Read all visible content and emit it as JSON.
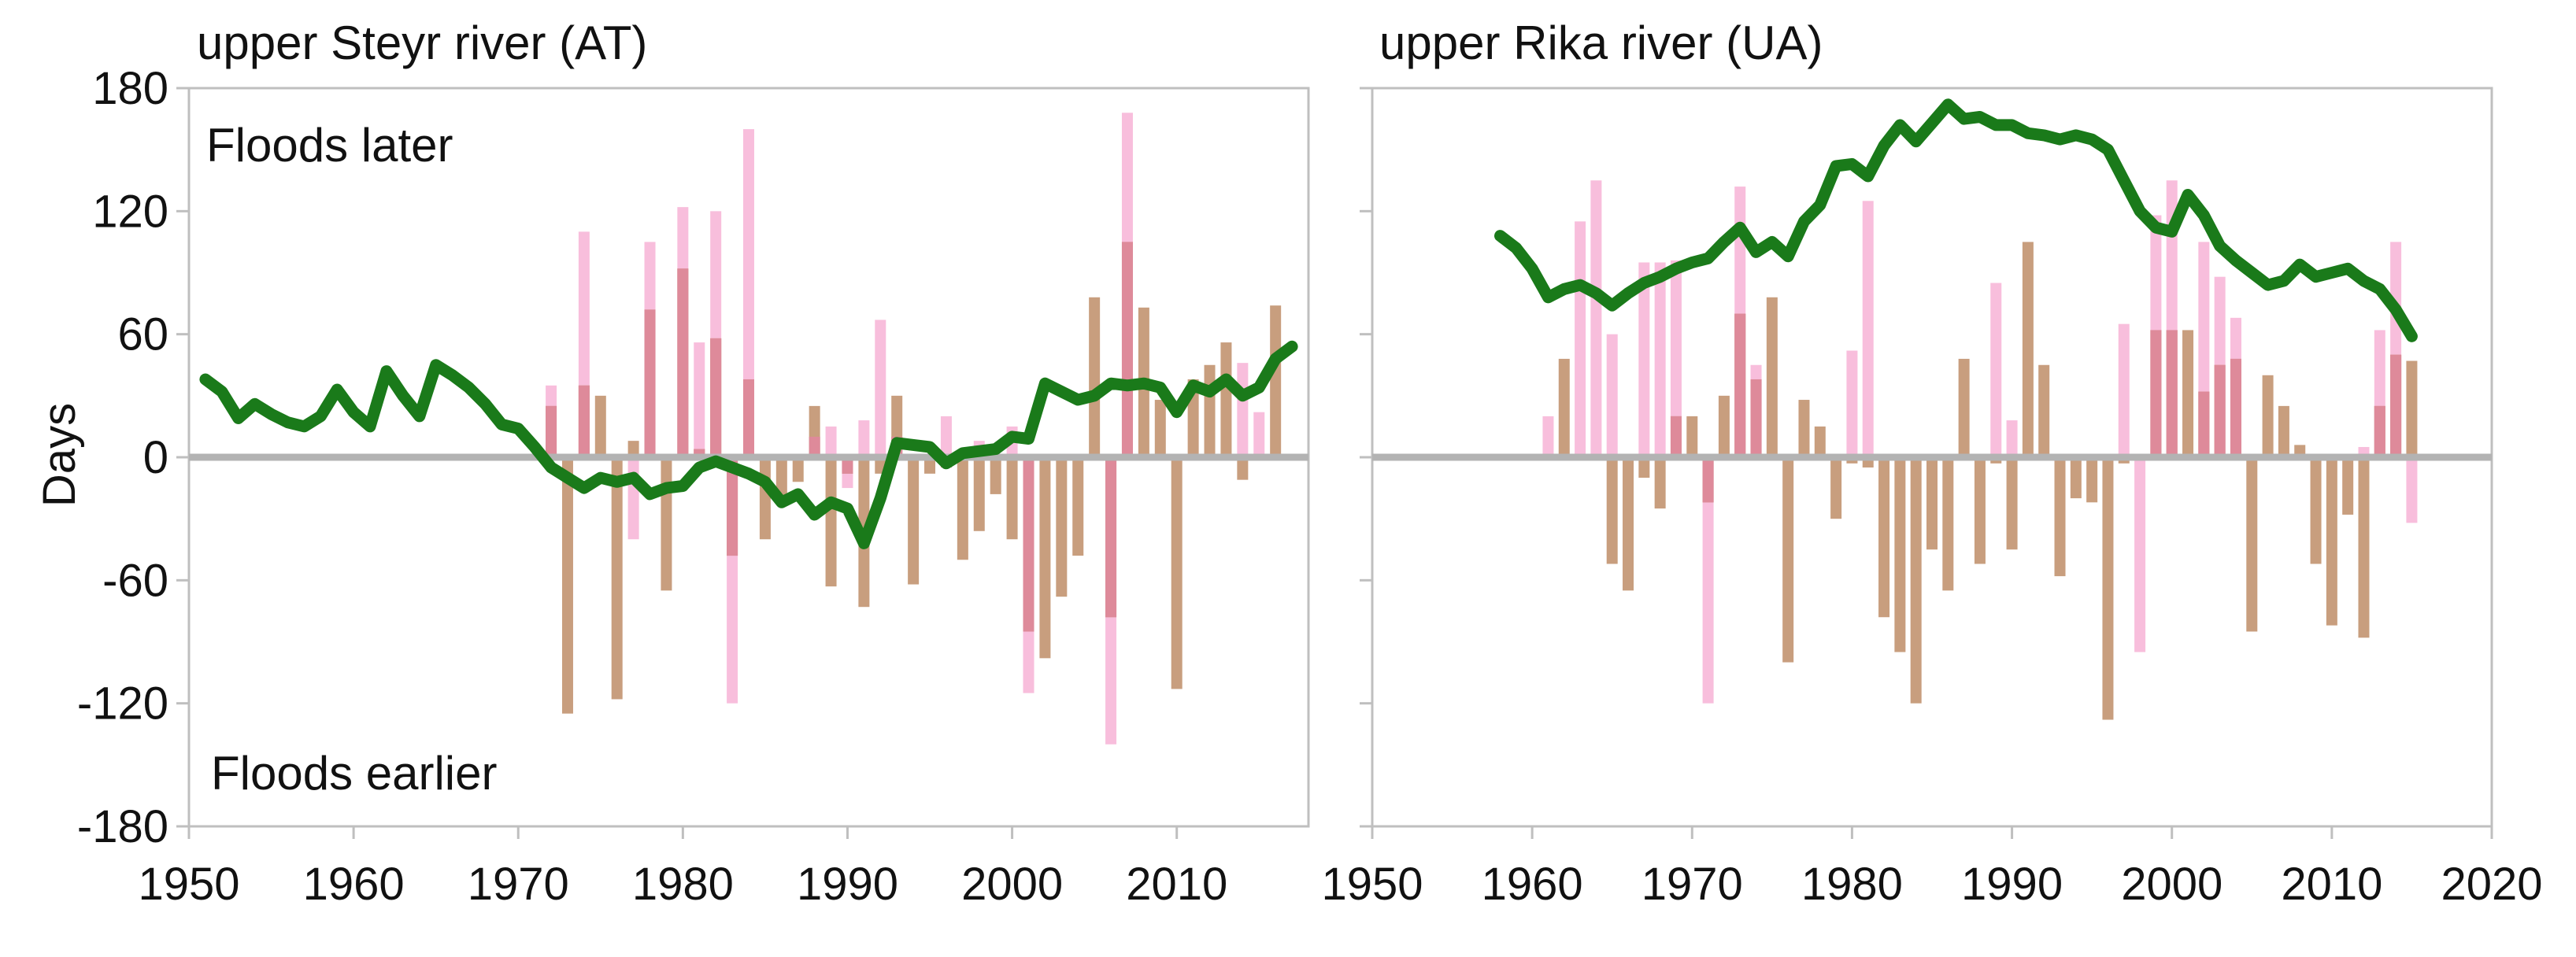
{
  "chart_data": [
    {
      "type": "bar",
      "title": "upper Steyr river (AT)",
      "ylabel": "Days",
      "xlabel": "",
      "xlim": [
        1950,
        2018
      ],
      "ylim": [
        -180,
        180
      ],
      "y_ticks": [
        180,
        120,
        60,
        0,
        -60,
        -120,
        -180
      ],
      "x_ticks": [
        1950,
        1960,
        1970,
        1980,
        1990,
        2000,
        2010
      ],
      "x_tick_labels": [
        "1950",
        "1960",
        "1970",
        "1980",
        "1990",
        "2000",
        "2010"
      ],
      "y_tick_labels": [
        "180",
        "120",
        "60",
        "0",
        "-60",
        "-120",
        "-180"
      ],
      "grid": false,
      "annotations": [
        "Floods later",
        "Floods earlier"
      ],
      "colors": {
        "pink": "#f7b3d6",
        "brown": "#c29470",
        "overlap": "#de8a9a",
        "trend": "#1a7a1a",
        "zero_line": "#b3b3b3",
        "frame": "#bfbfbf"
      },
      "series": [
        {
          "kind": "bar",
          "color": "pink",
          "x": [
            1972,
            1974,
            1977,
            1978,
            1980,
            1981,
            1982,
            1983,
            1984,
            1988,
            1989,
            1990,
            1991,
            1992,
            1993,
            1996,
            1998,
            2000,
            2001,
            2006,
            2007,
            2014,
            2015
          ],
          "values": [
            35,
            110,
            -40,
            105,
            122,
            56,
            120,
            -120,
            160,
            10,
            15,
            -15,
            18,
            67,
            10,
            20,
            8,
            15,
            -115,
            -140,
            168,
            46,
            22
          ]
        },
        {
          "kind": "bar",
          "color": "brown",
          "x": [
            1972,
            1973,
            1974,
            1975,
            1976,
            1977,
            1978,
            1979,
            1980,
            1981,
            1982,
            1983,
            1984,
            1985,
            1986,
            1987,
            1988,
            1989,
            1990,
            1991,
            1992,
            1993,
            1994,
            1995,
            1996,
            1997,
            1998,
            1999,
            2000,
            2001,
            2002,
            2003,
            2004,
            2005,
            2006,
            2007,
            2008,
            2009,
            2010,
            2011,
            2012,
            2013,
            2014,
            2016
          ],
          "values": [
            25,
            -125,
            35,
            30,
            -118,
            8,
            72,
            -65,
            92,
            4,
            58,
            -48,
            38,
            -40,
            -20,
            -12,
            25,
            -63,
            -8,
            -73,
            -8,
            30,
            -62,
            -8,
            -5,
            -50,
            -36,
            -18,
            -40,
            -85,
            -98,
            -68,
            -48,
            78,
            -78,
            105,
            73,
            28,
            -113,
            38,
            45,
            56,
            -11,
            74
          ]
        },
        {
          "kind": "line",
          "color": "trend",
          "name": "",
          "x": [
            1951,
            1952,
            1953,
            1954,
            1955,
            1956,
            1957,
            1958,
            1959,
            1960,
            1961,
            1962,
            1963,
            1964,
            1965,
            1966,
            1967,
            1968,
            1969,
            1970,
            1971,
            1972,
            1973,
            1974,
            1975,
            1976,
            1977,
            1978,
            1979,
            1980,
            1981,
            1982,
            1983,
            1984,
            1985,
            1986,
            1987,
            1988,
            1989,
            1990,
            1991,
            1992,
            1993,
            1994,
            1995,
            1996,
            1997,
            1998,
            1999,
            2000,
            2001,
            2002,
            2003,
            2004,
            2005,
            2006,
            2007,
            2008,
            2009,
            2010,
            2011,
            2012,
            2013,
            2014,
            2015,
            2016,
            2017
          ],
          "values": [
            38,
            32,
            19,
            26,
            21,
            17,
            15,
            20,
            33,
            22,
            15,
            42,
            30,
            20,
            45,
            40,
            34,
            26,
            16,
            14,
            5,
            -5,
            -10,
            -15,
            -10,
            -12,
            -10,
            -18,
            -15,
            -14,
            -5,
            -2,
            -5,
            -8,
            -12,
            -22,
            -18,
            -28,
            -22,
            -25,
            -42,
            -20,
            7,
            6,
            5,
            -3,
            2,
            3,
            4,
            10,
            9,
            36,
            32,
            28,
            30,
            36,
            35,
            36,
            34,
            22,
            35,
            32,
            38,
            30,
            34,
            48,
            54
          ]
        }
      ]
    },
    {
      "type": "bar",
      "title": "upper Rika river (UA)",
      "ylabel": "",
      "xlabel": "",
      "xlim": [
        1950,
        2020
      ],
      "ylim": [
        -180,
        180
      ],
      "y_ticks": [
        180,
        120,
        60,
        0,
        -60,
        -120,
        -180
      ],
      "x_ticks": [
        1950,
        1960,
        1970,
        1980,
        1990,
        2000,
        2010,
        2020
      ],
      "x_tick_labels": [
        "1950",
        "1960",
        "1970",
        "1980",
        "1990",
        "2000",
        "2010",
        "2020"
      ],
      "grid": false,
      "series": [
        {
          "kind": "bar",
          "color": "pink",
          "x": [
            1961,
            1963,
            1964,
            1965,
            1967,
            1968,
            1969,
            1971,
            1973,
            1974,
            1980,
            1981,
            1989,
            1990,
            1997,
            1998,
            1999,
            2000,
            2002,
            2003,
            2004,
            2012,
            2013,
            2014,
            2015
          ],
          "values": [
            20,
            115,
            135,
            60,
            95,
            95,
            96,
            -120,
            132,
            45,
            52,
            125,
            85,
            18,
            65,
            -95,
            118,
            135,
            105,
            88,
            68,
            5,
            62,
            105,
            -32
          ]
        },
        {
          "kind": "bar",
          "color": "brown",
          "x": [
            1962,
            1965,
            1966,
            1967,
            1968,
            1969,
            1970,
            1971,
            1972,
            1973,
            1974,
            1975,
            1976,
            1977,
            1978,
            1979,
            1980,
            1981,
            1982,
            1983,
            1984,
            1985,
            1986,
            1987,
            1988,
            1989,
            1990,
            1991,
            1992,
            1993,
            1994,
            1995,
            1996,
            1997,
            1999,
            2000,
            2001,
            2002,
            2003,
            2004,
            2005,
            2006,
            2007,
            2008,
            2009,
            2010,
            2011,
            2012,
            2013,
            2014,
            2015
          ],
          "values": [
            48,
            -52,
            -65,
            -10,
            -25,
            20,
            20,
            -22,
            30,
            70,
            38,
            78,
            -100,
            28,
            15,
            -30,
            -3,
            -5,
            -78,
            -95,
            -120,
            -45,
            -65,
            48,
            -52,
            -3,
            -45,
            105,
            45,
            -58,
            -20,
            -22,
            -128,
            -3,
            62,
            62,
            62,
            32,
            45,
            48,
            -85,
            40,
            25,
            6,
            -52,
            -82,
            -28,
            -88,
            25,
            50,
            47
          ]
        },
        {
          "kind": "line",
          "color": "trend",
          "name": "",
          "x": [
            1958,
            1959,
            1960,
            1961,
            1962,
            1963,
            1964,
            1965,
            1966,
            1967,
            1968,
            1969,
            1970,
            1971,
            1972,
            1973,
            1974,
            1975,
            1976,
            1977,
            1978,
            1979,
            1980,
            1981,
            1982,
            1983,
            1984,
            1985,
            1986,
            1987,
            1988,
            1989,
            1990,
            1991,
            1992,
            1993,
            1994,
            1995,
            1996,
            1997,
            1998,
            1999,
            2000,
            2001,
            2002,
            2003,
            2004,
            2005,
            2006,
            2007,
            2008,
            2009,
            2010,
            2011,
            2012,
            2013,
            2014,
            2015
          ],
          "values": [
            108,
            102,
            92,
            78,
            82,
            84,
            80,
            74,
            80,
            85,
            88,
            92,
            95,
            97,
            105,
            112,
            100,
            105,
            98,
            115,
            123,
            142,
            143,
            137,
            152,
            162,
            154,
            163,
            172,
            165,
            166,
            162,
            162,
            158,
            157,
            155,
            157,
            155,
            150,
            135,
            120,
            112,
            110,
            128,
            118,
            103,
            96,
            90,
            84,
            86,
            94,
            88,
            90,
            92,
            86,
            82,
            72,
            59
          ]
        }
      ]
    }
  ]
}
